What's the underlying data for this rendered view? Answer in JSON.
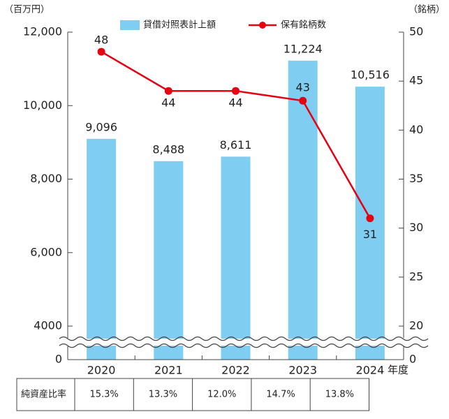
{
  "chart_data": {
    "type": "bar_line",
    "y_label": "（百万円）",
    "y2_label": "（銘柄）",
    "x_label": "年度",
    "categories": [
      "2020",
      "2021",
      "2022",
      "2023",
      "2024"
    ],
    "series": [
      {
        "name": "貸借対照表計上額",
        "color": "#7fcdf0",
        "values": [
          9096,
          8488,
          8611,
          11224,
          10516
        ],
        "value_labels": [
          "9,096",
          "8,488",
          "8,611",
          "11,224",
          "10,516"
        ]
      },
      {
        "name": "保有銘柄数",
        "color": "#e60012",
        "axis": "y2",
        "values": [
          48,
          44,
          44,
          43,
          31
        ]
      }
    ],
    "ylim": [
      4000,
      12000
    ],
    "yticks": [
      0,
      4000,
      {
        "value": 6000,
        "label": "6,000"
      },
      {
        "value": 8000,
        "label": "8,000"
      },
      {
        "value": 10000,
        "label": "10,000"
      },
      {
        "value": 12000,
        "label": "12,000"
      }
    ],
    "y2lim": [
      20,
      50
    ],
    "y2ticks": [
      0,
      20,
      25,
      30,
      35,
      40,
      45,
      50
    ],
    "axis_break": true,
    "table": {
      "header": "純資産比率",
      "cells": [
        "15.3%",
        "13.3%",
        "12.0%",
        "14.7%",
        "13.8%"
      ]
    }
  }
}
